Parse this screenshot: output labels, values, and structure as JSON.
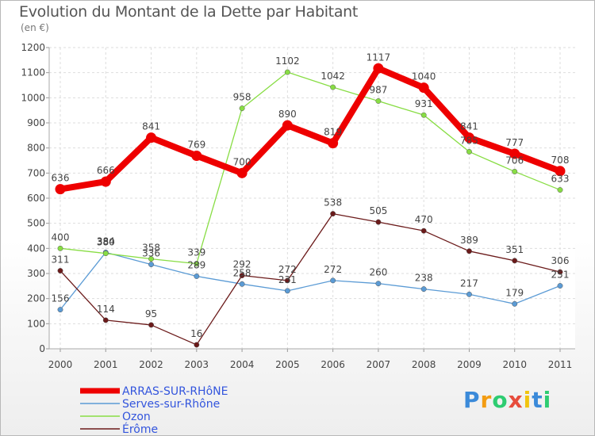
{
  "chart_data": {
    "type": "line",
    "title": "Evolution du Montant de la Dette par Habitant",
    "subtitle": "(en €)",
    "x": [
      "2000",
      "2001",
      "2002",
      "2003",
      "2004",
      "2005",
      "2006",
      "2007",
      "2008",
      "2009",
      "2010",
      "2011"
    ],
    "ylim": [
      0,
      1200
    ],
    "yticks": [
      0,
      100,
      200,
      300,
      400,
      500,
      600,
      700,
      800,
      900,
      1000,
      1100,
      1200
    ],
    "grid": true,
    "legend_position": "bottom-left",
    "series": [
      {
        "name": "ARRAS-SUR-RHôNE",
        "color": "#ee0000",
        "values": [
          636,
          666,
          841,
          769,
          700,
          890,
          819,
          1117,
          1040,
          841,
          777,
          708
        ],
        "labels": [
          "636",
          "666",
          "841",
          "769",
          "700",
          "890",
          "819",
          "1117",
          "1040",
          "841",
          "777",
          "708"
        ]
      },
      {
        "name": "Serves-sur-Rhône",
        "color": "#5b9bd5",
        "values": [
          156,
          384,
          336,
          289,
          258,
          231,
          272,
          260,
          238,
          217,
          179,
          251
        ],
        "labels": [
          "156",
          "384",
          "336",
          "289",
          "258",
          "231",
          "272",
          "260",
          "238",
          "217",
          "179",
          "251"
        ]
      },
      {
        "name": "Ozon",
        "color": "#88dd44",
        "values": [
          400,
          380,
          358,
          339,
          958,
          1102,
          1042,
          987,
          931,
          785,
          706,
          633
        ],
        "labels": [
          "400",
          "380",
          "358",
          "339",
          "958",
          "1102",
          "1042",
          "987",
          "931",
          "785",
          "706",
          "633"
        ]
      },
      {
        "name": "Érôme",
        "color": "#6b1a1a",
        "values": [
          311,
          114,
          95,
          16,
          292,
          272,
          538,
          505,
          470,
          389,
          351,
          306
        ],
        "labels": [
          "311",
          "114",
          "95",
          "16",
          "292",
          "272",
          "538",
          "505",
          "470",
          "389",
          "351",
          "306"
        ]
      }
    ]
  },
  "logo": {
    "letters": [
      "P",
      "r",
      "o",
      "x",
      "i",
      "t",
      "i"
    ],
    "colors": [
      "#3b8ad9",
      "#f39c12",
      "#2ecc71",
      "#e74c3c",
      "#f1c40f",
      "#3b8ad9",
      "#2ecc71"
    ]
  }
}
